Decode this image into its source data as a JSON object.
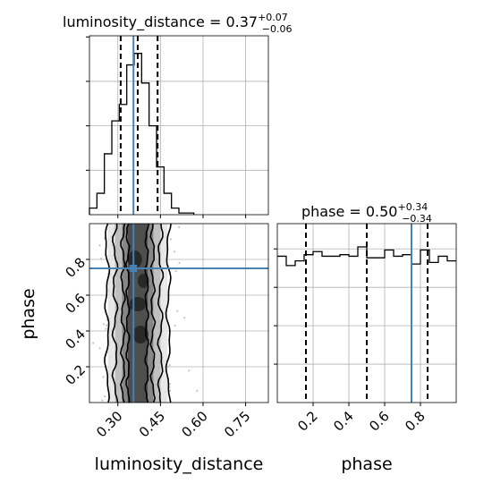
{
  "chart_data": {
    "type": "corner",
    "truth_color": "#4682b4",
    "panels": [
      {
        "id": "hist-luminosity_distance",
        "type": "histogram",
        "title": {
          "name": "luminosity_distance",
          "median": "0.37",
          "plus": "+0.07",
          "minus": "−0.06"
        },
        "x_range": [
          0.2,
          0.83
        ],
        "bin_edges": [
          0.2,
          0.2263,
          0.2525,
          0.2788,
          0.305,
          0.3313,
          0.3575,
          0.3838,
          0.41,
          0.4363,
          0.4625,
          0.4888,
          0.515,
          0.5413,
          0.5675
        ],
        "counts": [
          0.04,
          0.13,
          0.37,
          0.57,
          0.67,
          0.91,
          0.98,
          0.8,
          0.54,
          0.29,
          0.13,
          0.04,
          0.01,
          0.01
        ],
        "quantiles": [
          0.31,
          0.37,
          0.44
        ],
        "truth": 0.355,
        "x_ticks": [
          0.3,
          0.45,
          0.6,
          0.75
        ],
        "grid": true
      },
      {
        "id": "2d-phase-vs-luminosity_distance",
        "type": "2d-density",
        "x_range": [
          0.2,
          0.83
        ],
        "y_range": [
          0.0,
          1.0
        ],
        "xlabel": "luminosity_distance",
        "ylabel": "phase",
        "x_tick_labels": [
          "0.30",
          "0.45",
          "0.60",
          "0.75"
        ],
        "x_ticks": [
          0.3,
          0.45,
          0.6,
          0.75
        ],
        "y_tick_labels": [
          "0.2",
          "0.4",
          "0.6",
          "0.8"
        ],
        "y_ticks": [
          0.2,
          0.4,
          0.6,
          0.8
        ],
        "truth": {
          "x": 0.355,
          "y": 0.75
        },
        "grid": true
      },
      {
        "id": "hist-phase",
        "type": "histogram",
        "title": {
          "name": "phase",
          "median": "0.50",
          "plus": "+0.34",
          "minus": "−0.34"
        },
        "x_range": [
          0.0,
          1.0
        ],
        "bin_edges": [
          0.0,
          0.05,
          0.1,
          0.15,
          0.2,
          0.25,
          0.3,
          0.35,
          0.4,
          0.45,
          0.5,
          0.55,
          0.6,
          0.65,
          0.7,
          0.75,
          0.8,
          0.85,
          0.9,
          0.95,
          1.0
        ],
        "counts": [
          0.94,
          0.88,
          0.91,
          0.95,
          0.97,
          0.94,
          0.94,
          0.95,
          0.94,
          1.0,
          0.93,
          0.93,
          0.98,
          0.94,
          0.95,
          0.89,
          0.98,
          0.9,
          0.94,
          0.91
        ],
        "quantiles": [
          0.16,
          0.5,
          0.84
        ],
        "truth": 0.75,
        "x_tick_labels": [
          "0.2",
          "0.4",
          "0.6",
          "0.8"
        ],
        "x_ticks": [
          0.2,
          0.4,
          0.6,
          0.8
        ],
        "xlabel": "phase",
        "grid": true
      }
    ]
  }
}
